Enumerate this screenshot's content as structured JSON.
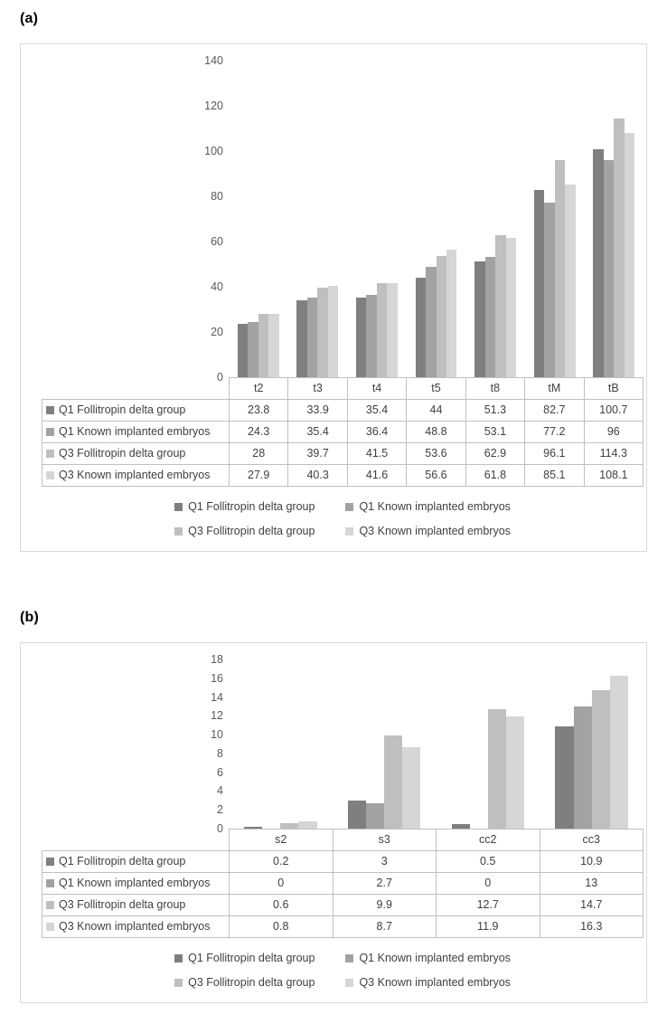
{
  "page_background": "#ffffff",
  "series_colors": [
    "#7f7f7f",
    "#a2a2a2",
    "#bfbfbf",
    "#d6d6d6"
  ],
  "chart_data": [
    {
      "panel_label": "(a)",
      "type": "bar",
      "title": "",
      "xlabel": "",
      "ylabel": "",
      "categories": [
        "t2",
        "t3",
        "t4",
        "t5",
        "t8",
        "tM",
        "tB"
      ],
      "series": [
        {
          "name": "Q1 Follitropin delta group",
          "values": [
            23.8,
            33.9,
            35.4,
            44,
            51.3,
            82.7,
            100.7
          ]
        },
        {
          "name": "Q1 Known implanted embryos",
          "values": [
            24.3,
            35.4,
            36.4,
            48.8,
            53.1,
            77.2,
            96
          ]
        },
        {
          "name": "Q3 Follitropin delta group",
          "values": [
            28,
            39.7,
            41.5,
            53.6,
            62.9,
            96.1,
            114.3
          ]
        },
        {
          "name": "Q3 Known implanted embryos",
          "values": [
            27.9,
            40.3,
            41.6,
            56.6,
            61.8,
            85.1,
            108.1
          ]
        }
      ],
      "ylim": [
        0,
        140
      ],
      "yticks": [
        140,
        120,
        100,
        80,
        60,
        40,
        20,
        0
      ],
      "grid": false,
      "legend_position": "bottom",
      "data_table_shown": true
    },
    {
      "panel_label": "(b)",
      "type": "bar",
      "title": "",
      "xlabel": "",
      "ylabel": "",
      "categories": [
        "s2",
        "s3",
        "cc2",
        "cc3"
      ],
      "series": [
        {
          "name": "Q1 Follitropin delta group",
          "values": [
            0.2,
            3,
            0.5,
            10.9
          ]
        },
        {
          "name": "Q1 Known implanted embryos",
          "values": [
            0,
            2.7,
            0,
            13
          ]
        },
        {
          "name": "Q3 Follitropin delta group",
          "values": [
            0.6,
            9.9,
            12.7,
            14.7
          ]
        },
        {
          "name": "Q3 Known implanted embryos",
          "values": [
            0.8,
            8.7,
            11.9,
            16.3
          ]
        }
      ],
      "ylim": [
        0,
        18
      ],
      "yticks": [
        18,
        16,
        14,
        12,
        10,
        8,
        6,
        4,
        2,
        0
      ],
      "grid": false,
      "legend_position": "bottom",
      "data_table_shown": true
    }
  ]
}
